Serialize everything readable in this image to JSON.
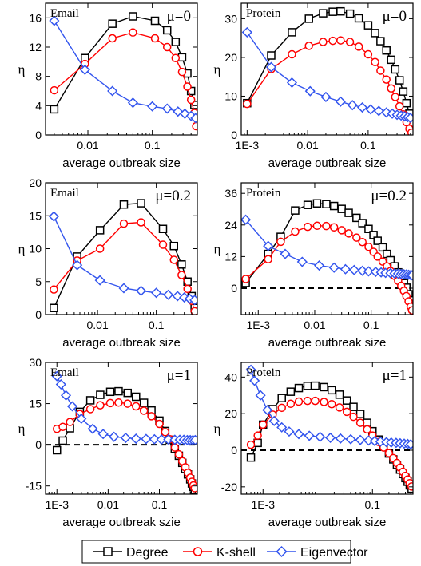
{
  "legend": {
    "entries": [
      {
        "label": "Degree",
        "color": "#000000",
        "marker": "square"
      },
      {
        "label": "K-shell",
        "color": "#ff0000",
        "marker": "circle"
      },
      {
        "label": "Eigenvector",
        "color": "#3355ee",
        "marker": "diamond"
      }
    ]
  },
  "chart_data": [
    {
      "type": "line",
      "panel_label": "Email",
      "mu_label": "μ=0",
      "xlabel": "average outbreak size",
      "ylabel": "η",
      "xscale": "log",
      "xlim": [
        0.0022,
        0.5
      ],
      "ylim": [
        0,
        18
      ],
      "yticks": [
        0,
        4,
        8,
        12,
        16
      ],
      "xticks": [
        {
          "v": 0.01,
          "label": "0.01"
        },
        {
          "v": 0.1,
          "label": "0.1"
        }
      ],
      "zero_line": false,
      "series": [
        {
          "name": "Degree",
          "x": [
            0.003,
            0.009,
            0.024,
            0.05,
            0.11,
            0.17,
            0.23,
            0.29,
            0.35,
            0.4,
            0.45
          ],
          "y": [
            3.5,
            10.5,
            15.2,
            16.2,
            15.6,
            14.3,
            12.7,
            10.6,
            8.4,
            6.0,
            4.1
          ]
        },
        {
          "name": "K-shell",
          "x": [
            0.003,
            0.009,
            0.024,
            0.05,
            0.11,
            0.17,
            0.23,
            0.29,
            0.35,
            0.4,
            0.45,
            0.48
          ],
          "y": [
            6.1,
            9.7,
            13.2,
            14.0,
            13.2,
            12.0,
            10.5,
            8.6,
            6.6,
            4.8,
            3.0,
            1.2
          ]
        },
        {
          "name": "Eigenvector",
          "x": [
            0.003,
            0.009,
            0.024,
            0.05,
            0.1,
            0.17,
            0.25,
            0.32,
            0.4,
            0.47
          ],
          "y": [
            15.6,
            8.9,
            6.0,
            4.4,
            3.9,
            3.6,
            3.2,
            2.9,
            2.6,
            2.3
          ]
        }
      ]
    },
    {
      "type": "line",
      "panel_label": "Protein",
      "mu_label": "μ=0",
      "xlabel": "average outbreak size",
      "ylabel": "η",
      "xscale": "log",
      "xlim": [
        0.0008,
        0.55
      ],
      "ylim": [
        0,
        34
      ],
      "yticks": [
        0,
        10,
        20,
        30
      ],
      "xticks": [
        {
          "v": 0.001,
          "label": "1E-3"
        },
        {
          "v": 0.01,
          "label": "0.01"
        },
        {
          "v": 0.1,
          "label": "0.1"
        }
      ],
      "zero_line": false,
      "series": [
        {
          "name": "Degree",
          "x": [
            0.001,
            0.0025,
            0.0055,
            0.0105,
            0.018,
            0.026,
            0.035,
            0.05,
            0.07,
            0.1,
            0.13,
            0.16,
            0.2,
            0.24,
            0.28,
            0.33,
            0.38,
            0.43,
            0.48
          ],
          "y": [
            8.2,
            20.5,
            26.5,
            30.0,
            31.4,
            31.8,
            31.9,
            31.3,
            30.1,
            28.3,
            26.3,
            24.2,
            21.8,
            19.4,
            16.9,
            14.1,
            11.2,
            8.2,
            5.5
          ]
        },
        {
          "name": "K-shell",
          "x": [
            0.001,
            0.0025,
            0.0055,
            0.0105,
            0.018,
            0.026,
            0.035,
            0.05,
            0.07,
            0.1,
            0.13,
            0.16,
            0.2,
            0.24,
            0.28,
            0.33,
            0.38,
            0.43,
            0.48,
            0.52
          ],
          "y": [
            8.0,
            17.0,
            20.8,
            23.0,
            24.0,
            24.3,
            24.4,
            24.0,
            22.8,
            20.8,
            18.8,
            16.6,
            14.3,
            12.0,
            9.8,
            7.4,
            5.3,
            3.3,
            1.6,
            0.6
          ]
        },
        {
          "name": "Eigenvector",
          "x": [
            0.001,
            0.0025,
            0.0055,
            0.011,
            0.02,
            0.035,
            0.055,
            0.08,
            0.11,
            0.15,
            0.2,
            0.25,
            0.3,
            0.35,
            0.4,
            0.45,
            0.5
          ],
          "y": [
            26.5,
            17.5,
            13.5,
            11.3,
            9.8,
            8.6,
            7.7,
            7.1,
            6.6,
            6.2,
            5.8,
            5.5,
            5.2,
            5.0,
            4.8,
            4.6,
            4.4
          ]
        }
      ]
    },
    {
      "type": "line",
      "panel_label": "Email",
      "mu_label": "μ=0.2",
      "xlabel": "average outbreak size",
      "ylabel": "η",
      "xscale": "log",
      "xlim": [
        0.0013,
        0.5
      ],
      "ylim": [
        0,
        20
      ],
      "yticks": [
        0,
        5,
        10,
        15,
        20
      ],
      "xticks": [
        {
          "v": 0.01,
          "label": "0.01"
        },
        {
          "v": 0.1,
          "label": "0.1"
        }
      ],
      "zero_line": false,
      "series": [
        {
          "name": "Degree",
          "x": [
            0.0018,
            0.0045,
            0.011,
            0.028,
            0.055,
            0.13,
            0.2,
            0.27,
            0.34,
            0.4,
            0.45
          ],
          "y": [
            1.0,
            8.8,
            12.8,
            16.7,
            16.9,
            13.0,
            10.4,
            7.6,
            5.0,
            2.8,
            1.0
          ]
        },
        {
          "name": "K-shell",
          "x": [
            0.0018,
            0.0045,
            0.011,
            0.028,
            0.055,
            0.13,
            0.2,
            0.27,
            0.34,
            0.4,
            0.45
          ],
          "y": [
            3.8,
            8.2,
            10.0,
            13.8,
            14.0,
            10.6,
            8.3,
            6.0,
            3.9,
            2.1,
            0.5
          ]
        },
        {
          "name": "Eigenvector",
          "x": [
            0.0018,
            0.0045,
            0.011,
            0.028,
            0.055,
            0.1,
            0.16,
            0.23,
            0.3,
            0.37,
            0.45
          ],
          "y": [
            14.9,
            7.5,
            5.2,
            4.0,
            3.6,
            3.3,
            3.0,
            2.8,
            2.6,
            2.4,
            2.2
          ]
        }
      ]
    },
    {
      "type": "line",
      "panel_label": "Protein",
      "mu_label": "μ=0.2",
      "xlabel": "average outbreak size",
      "ylabel": "η",
      "xscale": "log",
      "xlim": [
        0.0005,
        0.55
      ],
      "ylim": [
        -10,
        40
      ],
      "yticks": [
        0,
        12,
        24,
        36
      ],
      "xticks": [
        {
          "v": 0.001,
          "label": "1E-3"
        },
        {
          "v": 0.01,
          "label": "0.01"
        },
        {
          "v": 0.1,
          "label": "0.1"
        }
      ],
      "zero_line": true,
      "series": [
        {
          "name": "Degree",
          "x": [
            0.0006,
            0.0015,
            0.0025,
            0.0045,
            0.0075,
            0.011,
            0.016,
            0.022,
            0.03,
            0.04,
            0.055,
            0.07,
            0.09,
            0.11,
            0.13,
            0.16,
            0.19,
            0.22,
            0.26,
            0.3,
            0.34,
            0.38,
            0.42,
            0.46,
            0.5,
            0.53
          ],
          "y": [
            2.0,
            13.0,
            19.5,
            29.5,
            31.6,
            32.2,
            31.9,
            31.2,
            30.1,
            28.6,
            26.7,
            24.7,
            22.5,
            20.2,
            18.0,
            15.5,
            13.0,
            10.6,
            8.3,
            6.0,
            3.9,
            1.9,
            0.2,
            -2.3,
            -4.6,
            -7.0
          ]
        },
        {
          "name": "K-shell",
          "x": [
            0.0006,
            0.0015,
            0.0025,
            0.0045,
            0.0075,
            0.011,
            0.016,
            0.022,
            0.03,
            0.04,
            0.055,
            0.07,
            0.09,
            0.11,
            0.13,
            0.16,
            0.19,
            0.22,
            0.26,
            0.3,
            0.34,
            0.38,
            0.42,
            0.46,
            0.5,
            0.53
          ],
          "y": [
            3.5,
            11.0,
            17.6,
            21.5,
            23.3,
            23.7,
            23.6,
            23.1,
            22.0,
            20.8,
            19.2,
            17.5,
            15.7,
            13.8,
            12.0,
            10.1,
            8.3,
            6.5,
            4.7,
            2.8,
            0.9,
            -1.0,
            -3.0,
            -5.0,
            -7.0,
            -8.4
          ]
        },
        {
          "name": "Eigenvector",
          "x": [
            0.0006,
            0.0015,
            0.003,
            0.006,
            0.012,
            0.022,
            0.035,
            0.05,
            0.07,
            0.09,
            0.12,
            0.15,
            0.18,
            0.22,
            0.26,
            0.3,
            0.34,
            0.38,
            0.42,
            0.46,
            0.5,
            0.53
          ],
          "y": [
            26.0,
            16.0,
            13.0,
            10.0,
            8.6,
            7.8,
            7.2,
            6.9,
            6.6,
            6.4,
            6.2,
            6.0,
            5.8,
            5.7,
            5.6,
            5.5,
            5.4,
            5.3,
            5.2,
            5.1,
            5.0,
            4.9
          ]
        }
      ]
    },
    {
      "type": "line",
      "panel_label": "Email",
      "mu_label": "μ=1",
      "xlabel": "average outbreak szie",
      "ylabel": "η",
      "xscale": "log",
      "xlim": [
        0.0006,
        0.55
      ],
      "ylim": [
        -18,
        30
      ],
      "yticks": [
        -15,
        0,
        15,
        30
      ],
      "xticks": [
        {
          "v": 0.001,
          "label": "1E-3"
        },
        {
          "v": 0.01,
          "label": "0.01"
        },
        {
          "v": 0.1,
          "label": "0.1"
        }
      ],
      "zero_line": true,
      "series": [
        {
          "name": "Degree",
          "x": [
            0.001,
            0.0013,
            0.0018,
            0.0028,
            0.0045,
            0.007,
            0.011,
            0.016,
            0.024,
            0.035,
            0.05,
            0.07,
            0.1,
            0.13,
            0.16,
            0.2,
            0.24,
            0.28,
            0.32,
            0.36,
            0.4,
            0.43,
            0.46,
            0.49
          ],
          "y": [
            -2.0,
            1.5,
            6.0,
            12.0,
            16.2,
            18.2,
            19.3,
            19.5,
            18.9,
            17.5,
            15.3,
            12.5,
            8.8,
            5.0,
            1.8,
            -1.5,
            -4.0,
            -6.6,
            -8.8,
            -10.8,
            -12.6,
            -14.1,
            -15.4,
            -16.4
          ]
        },
        {
          "name": "K-shell",
          "x": [
            0.001,
            0.0013,
            0.0018,
            0.0028,
            0.0045,
            0.007,
            0.011,
            0.016,
            0.024,
            0.035,
            0.05,
            0.07,
            0.1,
            0.13,
            0.16,
            0.2,
            0.24,
            0.28,
            0.32,
            0.36,
            0.4,
            0.43,
            0.46,
            0.49
          ],
          "y": [
            5.8,
            6.5,
            8.3,
            11.2,
            13.0,
            14.4,
            15.2,
            15.4,
            15.0,
            14.0,
            12.4,
            10.4,
            7.6,
            4.6,
            2.0,
            -1.0,
            -3.5,
            -6.0,
            -8.2,
            -10.2,
            -12.0,
            -13.5,
            -14.8,
            -15.8
          ]
        },
        {
          "name": "Eigenvector",
          "x": [
            0.001,
            0.0012,
            0.0015,
            0.002,
            0.003,
            0.005,
            0.008,
            0.013,
            0.022,
            0.035,
            0.055,
            0.08,
            0.11,
            0.15,
            0.2,
            0.25,
            0.3,
            0.35,
            0.4,
            0.45,
            0.5
          ],
          "y": [
            25.0,
            22.0,
            18.0,
            14.0,
            9.5,
            5.8,
            3.9,
            2.9,
            2.5,
            2.2,
            2.1,
            2.0,
            1.9,
            1.9,
            1.8,
            1.8,
            1.8,
            1.7,
            1.7,
            1.7,
            1.7
          ]
        }
      ]
    },
    {
      "type": "line",
      "panel_label": "Protein",
      "mu_label": "μ=1",
      "xlabel": "average outbreak size",
      "ylabel": "η",
      "xscale": "log",
      "xlim": [
        0.0004,
        0.55
      ],
      "ylim": [
        -24,
        48
      ],
      "yticks": [
        -20,
        0,
        20,
        40
      ],
      "xticks": [
        {
          "v": 0.001,
          "label": "1E-3"
        },
        {
          "v": 0.1,
          "label": "0.1"
        }
      ],
      "zero_line": true,
      "series": [
        {
          "name": "Degree",
          "x": [
            0.0006,
            0.0008,
            0.001,
            0.0015,
            0.0022,
            0.0032,
            0.0045,
            0.0065,
            0.009,
            0.013,
            0.018,
            0.025,
            0.034,
            0.045,
            0.06,
            0.08,
            0.1,
            0.13,
            0.16,
            0.2,
            0.24,
            0.28,
            0.32,
            0.36,
            0.4,
            0.44,
            0.48,
            0.52
          ],
          "y": [
            -4.0,
            4.0,
            14.0,
            22.5,
            28.5,
            32.0,
            34.0,
            35.2,
            35.3,
            34.5,
            32.8,
            30.4,
            27.2,
            23.7,
            19.8,
            15.0,
            10.4,
            5.8,
            2.0,
            -1.8,
            -5.0,
            -8.0,
            -10.6,
            -13.0,
            -15.2,
            -17.2,
            -19.2,
            -21.0
          ]
        },
        {
          "name": "K-shell",
          "x": [
            0.0006,
            0.0008,
            0.001,
            0.0015,
            0.0022,
            0.0032,
            0.0045,
            0.0065,
            0.009,
            0.013,
            0.018,
            0.025,
            0.034,
            0.045,
            0.06,
            0.08,
            0.1,
            0.13,
            0.16,
            0.2,
            0.24,
            0.28,
            0.32,
            0.36,
            0.4,
            0.44,
            0.48,
            0.52
          ],
          "y": [
            3.0,
            8.0,
            14.0,
            19.5,
            23.2,
            25.4,
            26.6,
            27.0,
            27.0,
            26.4,
            25.2,
            23.4,
            21.0,
            18.3,
            15.0,
            11.4,
            8.0,
            4.5,
            1.5,
            -1.6,
            -4.3,
            -7.0,
            -9.5,
            -11.8,
            -14.0,
            -16.0,
            -18.0,
            -19.8
          ]
        },
        {
          "name": "Eigenvector",
          "x": [
            0.0006,
            0.0007,
            0.0009,
            0.0012,
            0.0016,
            0.0022,
            0.003,
            0.0045,
            0.007,
            0.011,
            0.017,
            0.026,
            0.04,
            0.06,
            0.085,
            0.11,
            0.14,
            0.18,
            0.22,
            0.27,
            0.32,
            0.38,
            0.44,
            0.5
          ],
          "y": [
            44.0,
            38.0,
            30.0,
            22.0,
            16.0,
            12.5,
            10.2,
            8.8,
            7.9,
            7.3,
            6.8,
            6.4,
            6.0,
            5.6,
            5.3,
            5.0,
            4.7,
            4.4,
            4.2,
            4.0,
            3.8,
            3.6,
            3.4,
            3.2
          ]
        }
      ]
    }
  ]
}
